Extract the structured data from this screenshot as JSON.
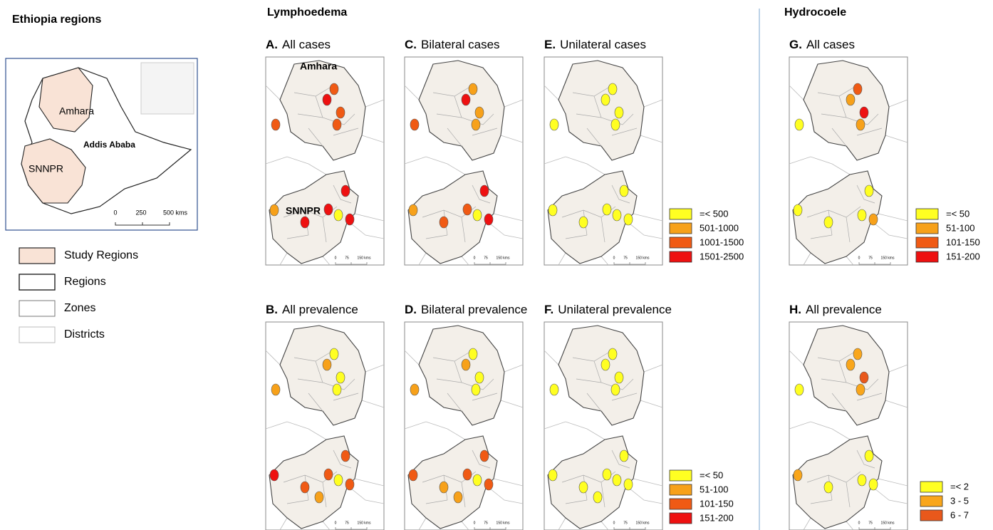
{
  "overview": {
    "title": "Ethiopia regions",
    "labels": [
      "Amhara",
      "Addis Ababa",
      "SNNPR"
    ],
    "scale": [
      "0",
      "250",
      "500 kms"
    ]
  },
  "key": [
    "Study Regions",
    "Regions",
    "Zones",
    "Districts"
  ],
  "sections": [
    "Lymphoedema",
    "Hydrocoele"
  ],
  "panels": [
    {
      "letter": "A.",
      "title": "All cases"
    },
    {
      "letter": "B.",
      "title": "All prevalence"
    },
    {
      "letter": "C.",
      "title": "Bilateral cases"
    },
    {
      "letter": "D.",
      "title": "Bilateral prevalence"
    },
    {
      "letter": "E.",
      "title": "Unilateral cases"
    },
    {
      "letter": "F.",
      "title": "Unilateral prevalence"
    },
    {
      "letter": "G.",
      "title": "All cases"
    },
    {
      "letter": "H.",
      "title": "All prevalence"
    }
  ],
  "map_labels": [
    "Amhara",
    "SNNPR"
  ],
  "map_scale": [
    "0",
    "75",
    "150 kms"
  ],
  "legends": [
    {
      "items": [
        {
          "label": "=< 500",
          "color": "#ffff22"
        },
        {
          "label": "501-1000",
          "color": "#f7a11a"
        },
        {
          "label": "1001-1500",
          "color": "#f05a14"
        },
        {
          "label": "1501-2500",
          "color": "#ee1111"
        }
      ]
    },
    {
      "items": [
        {
          "label": "=< 50",
          "color": "#ffff22"
        },
        {
          "label": "51-100",
          "color": "#f7a11a"
        },
        {
          "label": "101-150",
          "color": "#f05a14"
        },
        {
          "label": "151-200",
          "color": "#ee1111"
        }
      ]
    },
    {
      "items": [
        {
          "label": "=< 50",
          "color": "#ffff22"
        },
        {
          "label": "51-100",
          "color": "#f7a11a"
        },
        {
          "label": "101-150",
          "color": "#f05a14"
        },
        {
          "label": "151-200",
          "color": "#ee1111"
        }
      ]
    },
    {
      "items": [
        {
          "label": "=< 2",
          "color": "#ffff22"
        },
        {
          "label": "3 - 5",
          "color": "#f9a61b"
        },
        {
          "label": "6 - 7",
          "color": "#e9581b"
        }
      ]
    }
  ]
}
